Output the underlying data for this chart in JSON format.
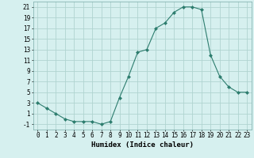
{
  "x": [
    0,
    1,
    2,
    3,
    4,
    5,
    6,
    7,
    8,
    9,
    10,
    11,
    12,
    13,
    14,
    15,
    16,
    17,
    18,
    19,
    20,
    21,
    22,
    23
  ],
  "y": [
    3,
    2,
    1,
    0,
    -0.5,
    -0.5,
    -0.5,
    -1,
    -0.5,
    4,
    8,
    12.5,
    13,
    17,
    18,
    20,
    21,
    21,
    20.5,
    12,
    8,
    6,
    5,
    5
  ],
  "line_color": "#2d7d6e",
  "marker": "D",
  "marker_size": 2,
  "bg_color": "#d6f0ef",
  "grid_color": "#b0d4d0",
  "xlabel": "Humidex (Indice chaleur)",
  "xlim": [
    -0.5,
    23.5
  ],
  "ylim": [
    -2,
    22
  ],
  "xticks": [
    0,
    1,
    2,
    3,
    4,
    5,
    6,
    7,
    8,
    9,
    10,
    11,
    12,
    13,
    14,
    15,
    16,
    17,
    18,
    19,
    20,
    21,
    22,
    23
  ],
  "yticks": [
    -1,
    1,
    3,
    5,
    7,
    9,
    11,
    13,
    15,
    17,
    19,
    21
  ],
  "tick_label_fontsize": 5.5,
  "xlabel_fontsize": 6.5
}
